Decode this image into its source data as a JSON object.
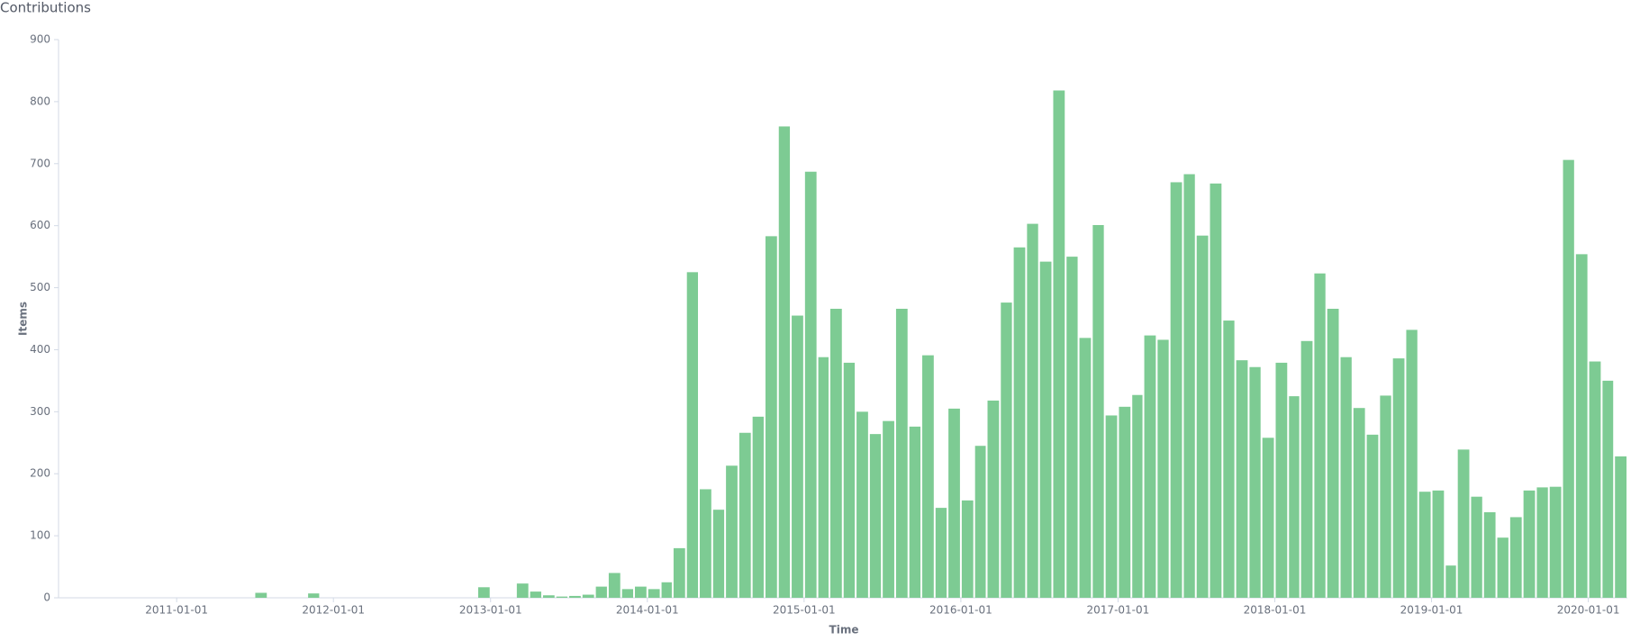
{
  "chart_data": {
    "type": "bar",
    "title": "Contributions",
    "y_label": "Items",
    "x_label": "Time",
    "color": "#7dcb93",
    "x": [
      "2011-07-01",
      "2011-11-01",
      "2012-12-01",
      "2013-03-01",
      "2013-04-01",
      "2013-05-01",
      "2013-06-01",
      "2013-07-01",
      "2013-08-01",
      "2013-09-01",
      "2013-10-01",
      "2013-11-01",
      "2013-12-01",
      "2014-01-01",
      "2014-02-01",
      "2014-03-01",
      "2014-04-01",
      "2014-05-01",
      "2014-06-01",
      "2014-07-01",
      "2014-08-01",
      "2014-09-01",
      "2014-10-01",
      "2014-11-01",
      "2014-12-01",
      "2015-01-01",
      "2015-02-01",
      "2015-03-01",
      "2015-04-01",
      "2015-05-01",
      "2015-06-01",
      "2015-07-01",
      "2015-08-01",
      "2015-09-01",
      "2015-10-01",
      "2015-11-01",
      "2015-12-01",
      "2016-01-01",
      "2016-02-01",
      "2016-03-01",
      "2016-04-01",
      "2016-05-01",
      "2016-06-01",
      "2016-07-01",
      "2016-08-01",
      "2016-09-01",
      "2016-10-01",
      "2016-11-01",
      "2016-12-01",
      "2017-01-01",
      "2017-02-01",
      "2017-03-01",
      "2017-04-01",
      "2017-05-01",
      "2017-06-01",
      "2017-07-01",
      "2017-08-01",
      "2017-09-01",
      "2017-10-01",
      "2017-11-01",
      "2017-12-01",
      "2018-01-01",
      "2018-02-01",
      "2018-03-01",
      "2018-04-01",
      "2018-05-01",
      "2018-06-01",
      "2018-07-01",
      "2018-08-01",
      "2018-09-01",
      "2018-10-01",
      "2018-11-01",
      "2018-12-01",
      "2019-01-01",
      "2019-02-01",
      "2019-03-01",
      "2019-04-01",
      "2019-05-01",
      "2019-06-01",
      "2019-07-01",
      "2019-08-01",
      "2019-09-01",
      "2019-10-01",
      "2019-11-01",
      "2019-12-01",
      "2020-01-01",
      "2020-02-01",
      "2020-03-01"
    ],
    "values": [
      8,
      7,
      17,
      23,
      10,
      4,
      2,
      3,
      5,
      18,
      40,
      14,
      18,
      14,
      25,
      80,
      525,
      175,
      142,
      213,
      266,
      292,
      583,
      760,
      455,
      687,
      388,
      466,
      379,
      300,
      264,
      285,
      466,
      276,
      391,
      145,
      305,
      157,
      245,
      318,
      476,
      565,
      603,
      542,
      818,
      550,
      419,
      601,
      294,
      308,
      327,
      423,
      416,
      670,
      683,
      584,
      668,
      447,
      383,
      372,
      258,
      379,
      325,
      414,
      523,
      466,
      388,
      306,
      263,
      326,
      386,
      432,
      171,
      173,
      52,
      239,
      163,
      138,
      97,
      130,
      173,
      178,
      179,
      706,
      554,
      381,
      350,
      228
    ],
    "xlim": [
      "2010-04-01",
      "2020-04-01"
    ],
    "xticks": [
      "2011-01-01",
      "2012-01-01",
      "2013-01-01",
      "2014-01-01",
      "2015-01-01",
      "2016-01-01",
      "2017-01-01",
      "2018-01-01",
      "2019-01-01",
      "2020-01-01"
    ],
    "ylim": [
      0,
      900
    ],
    "yticks": [
      0,
      100,
      200,
      300,
      400,
      500,
      600,
      700,
      800,
      900
    ]
  }
}
